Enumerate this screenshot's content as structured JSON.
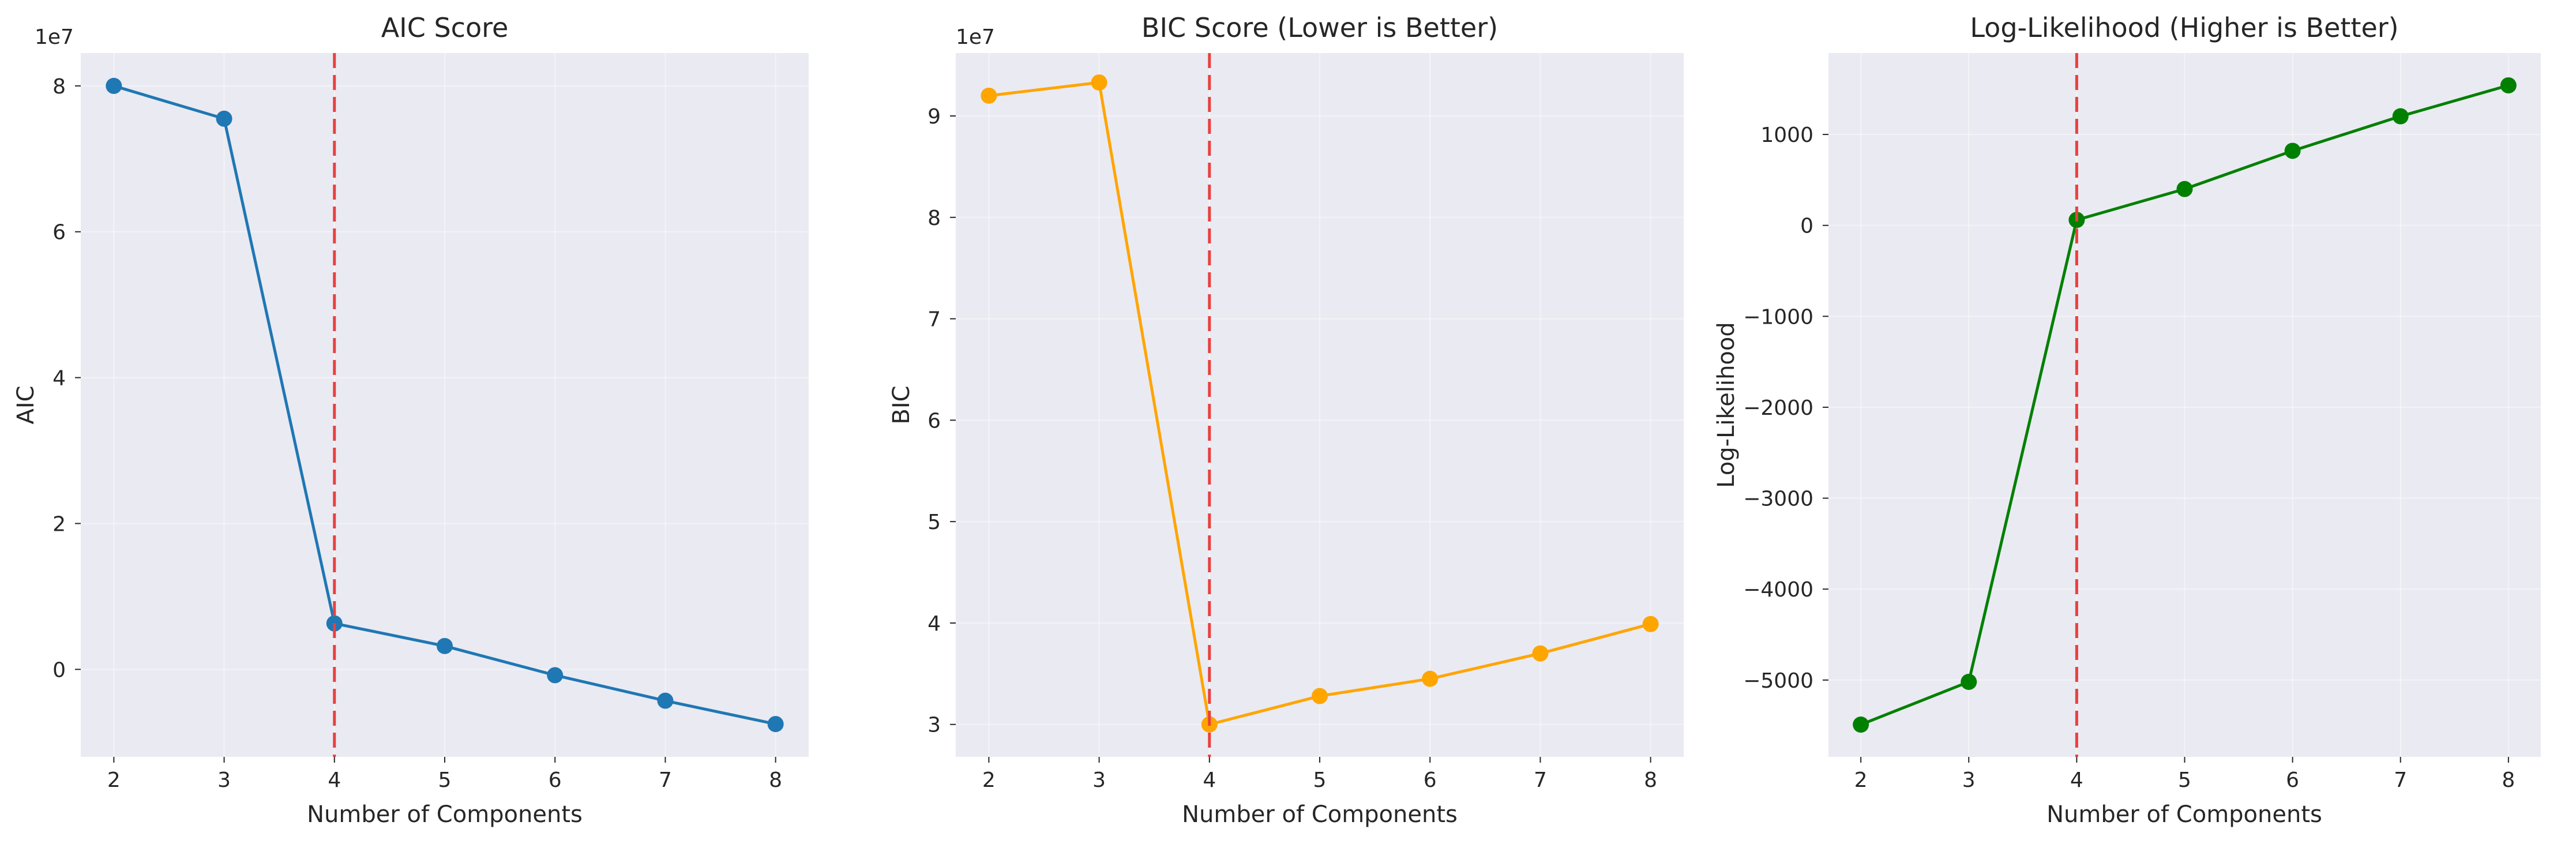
{
  "figure": {
    "background": "#ffffff",
    "plot_background": "#eaeaf2"
  },
  "chart_data": [
    {
      "type": "line",
      "title": "AIC Score",
      "xlabel": "Number of Components",
      "ylabel": "AIC",
      "y_offset_label": "1e7",
      "x": [
        2,
        3,
        4,
        5,
        6,
        7,
        8
      ],
      "series": [
        {
          "values": [
            8.0,
            7.55,
            0.63,
            0.32,
            -0.08,
            -0.43,
            -0.75
          ],
          "color": "#1f77b4",
          "marker": "circle"
        }
      ],
      "xlim": [
        1.7,
        8.3
      ],
      "ylim": [
        -1.2,
        8.45
      ],
      "xticks": [
        2,
        3,
        4,
        5,
        6,
        7,
        8
      ],
      "xtick_labels": [
        "2",
        "3",
        "4",
        "5",
        "6",
        "7",
        "8"
      ],
      "yticks": [
        0,
        2,
        4,
        6,
        8
      ],
      "ytick_labels": [
        "0",
        "2",
        "4",
        "6",
        "8"
      ],
      "reference_line": {
        "x": 4,
        "color": "#e8413f",
        "style": "dashed"
      },
      "grid": true,
      "legend": "none"
    },
    {
      "type": "line",
      "title": "BIC Score (Lower is Better)",
      "xlabel": "Number of Components",
      "ylabel": "BIC",
      "y_offset_label": "1e7",
      "x": [
        2,
        3,
        4,
        5,
        6,
        7,
        8
      ],
      "series": [
        {
          "values": [
            9.2,
            9.33,
            3.0,
            3.28,
            3.45,
            3.7,
            3.99
          ],
          "color": "#ffa500",
          "marker": "circle"
        }
      ],
      "xlim": [
        1.7,
        8.3
      ],
      "ylim": [
        2.68,
        9.62
      ],
      "xticks": [
        2,
        3,
        4,
        5,
        6,
        7,
        8
      ],
      "xtick_labels": [
        "2",
        "3",
        "4",
        "5",
        "6",
        "7",
        "8"
      ],
      "yticks": [
        3,
        4,
        5,
        6,
        7,
        8,
        9
      ],
      "ytick_labels": [
        "3",
        "4",
        "5",
        "6",
        "7",
        "8",
        "9"
      ],
      "reference_line": {
        "x": 4,
        "color": "#e8413f",
        "style": "dashed"
      },
      "grid": true,
      "legend": "none"
    },
    {
      "type": "line",
      "title": "Log-Likelihood (Higher is Better)",
      "xlabel": "Number of Components",
      "ylabel": "Log-Likelihood",
      "y_offset_label": "",
      "x": [
        2,
        3,
        4,
        5,
        6,
        7,
        8
      ],
      "series": [
        {
          "values": [
            -5490,
            -5020,
            60,
            400,
            820,
            1200,
            1540
          ],
          "color": "#008000",
          "marker": "circle"
        }
      ],
      "xlim": [
        1.7,
        8.3
      ],
      "ylim": [
        -5845,
        1895
      ],
      "xticks": [
        2,
        3,
        4,
        5,
        6,
        7,
        8
      ],
      "xtick_labels": [
        "2",
        "3",
        "4",
        "5",
        "6",
        "7",
        "8"
      ],
      "yticks": [
        -5000,
        -4000,
        -3000,
        -2000,
        -1000,
        0,
        1000
      ],
      "ytick_labels": [
        "−5000",
        "−4000",
        "−3000",
        "−2000",
        "−1000",
        "0",
        "1000"
      ],
      "reference_line": {
        "x": 4,
        "color": "#e8413f",
        "style": "dashed"
      },
      "grid": true,
      "legend": "none"
    }
  ]
}
